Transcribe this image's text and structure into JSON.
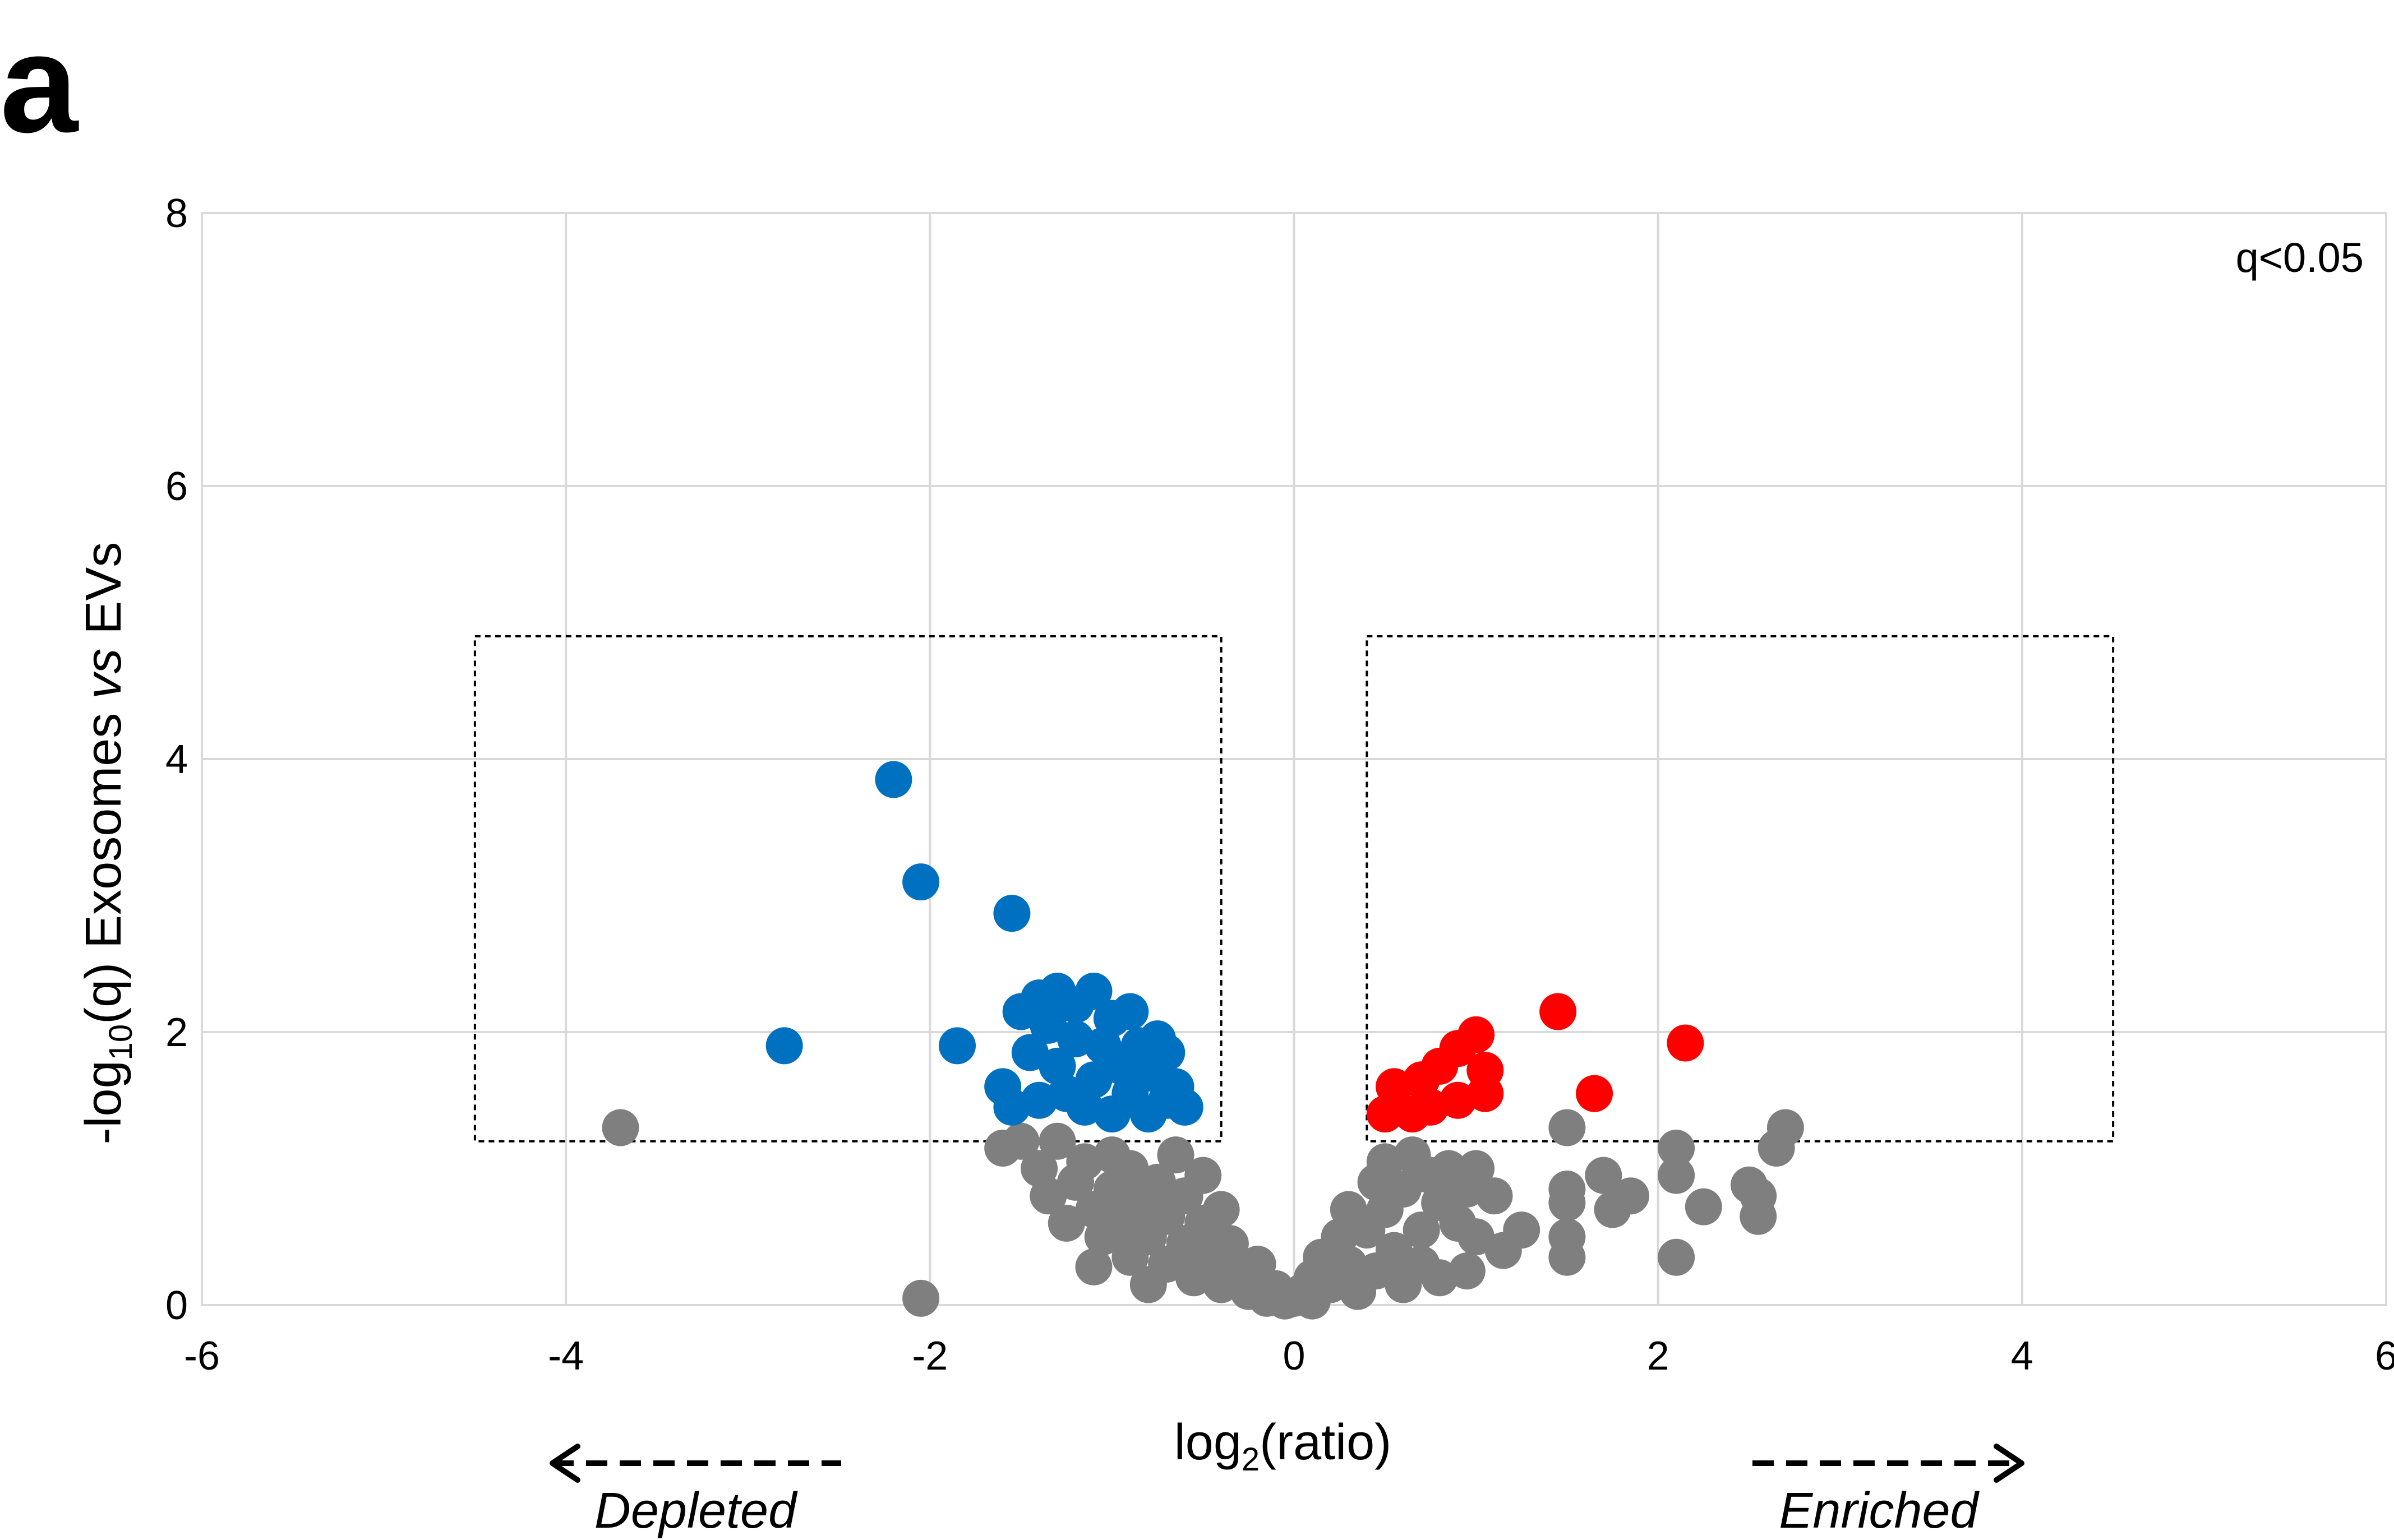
{
  "panel_label": "a",
  "colors": {
    "not_significant": "#7f7f7f",
    "depleted": "#0070c0",
    "enriched": "#ff0000",
    "grid": "#d9d9d9",
    "frame": "#d9d9d9"
  },
  "chart_data": {
    "type": "scatter",
    "title": "",
    "xlabel": "log2(ratio)",
    "xlabel_parts": {
      "pre": "log",
      "sub": "2",
      "post": "(ratio)"
    },
    "ylabel": "-log10(q) Exosomes vs EVs",
    "ylabel_parts": {
      "pre": "-log",
      "sub": "10",
      "mid": "(q) Exosomes ",
      "italic": "vs",
      "post": " EVs"
    },
    "xlim": [
      -6,
      6
    ],
    "ylim": [
      0,
      8
    ],
    "x_ticks": [
      -6,
      -4,
      -2,
      0,
      2,
      4,
      6
    ],
    "x_tick_labels": [
      "-6",
      "-4",
      "-2",
      "0",
      "2",
      "4",
      "6"
    ],
    "y_ticks": [
      0,
      2,
      4,
      6,
      8
    ],
    "y_tick_labels": [
      "0",
      "2",
      "4",
      "6",
      "8"
    ],
    "grid": true,
    "threshold_label": "q<0.05",
    "direction_labels": {
      "left": "Depleted",
      "right": "Enriched"
    },
    "threshold_boxes": [
      {
        "x": [
          -4.5,
          -0.4
        ],
        "y": [
          1.2,
          4.9
        ]
      },
      {
        "x": [
          0.4,
          4.5
        ],
        "y": [
          1.2,
          4.9
        ]
      }
    ],
    "series": [
      {
        "color_key": "not_significant",
        "points": [
          [
            -3.7,
            1.3
          ],
          [
            -2.05,
            0.05
          ],
          [
            -1.6,
            1.15
          ],
          [
            -1.5,
            1.2
          ],
          [
            -1.4,
            1.0
          ],
          [
            -1.35,
            0.8
          ],
          [
            -1.3,
            1.2
          ],
          [
            -1.25,
            0.6
          ],
          [
            -1.2,
            0.9
          ],
          [
            -1.15,
            1.05
          ],
          [
            -1.1,
            0.7
          ],
          [
            -1.1,
            0.28
          ],
          [
            -1.05,
            0.5
          ],
          [
            -1.0,
            1.1
          ],
          [
            -1.0,
            0.85
          ],
          [
            -0.95,
            0.6
          ],
          [
            -0.9,
            0.35
          ],
          [
            -0.9,
            1.0
          ],
          [
            -0.85,
            0.75
          ],
          [
            -0.8,
            0.5
          ],
          [
            -0.8,
            0.15
          ],
          [
            -0.75,
            0.9
          ],
          [
            -0.7,
            0.65
          ],
          [
            -0.7,
            0.3
          ],
          [
            -0.65,
            1.1
          ],
          [
            -0.6,
            0.8
          ],
          [
            -0.6,
            0.45
          ],
          [
            -0.55,
            0.2
          ],
          [
            -0.5,
            0.6
          ],
          [
            -0.5,
            0.95
          ],
          [
            -0.45,
            0.35
          ],
          [
            -0.4,
            0.15
          ],
          [
            -0.4,
            0.7
          ],
          [
            -0.35,
            0.45
          ],
          [
            -0.3,
            0.25
          ],
          [
            -0.25,
            0.1
          ],
          [
            -0.2,
            0.3
          ],
          [
            -0.15,
            0.05
          ],
          [
            -0.1,
            0.12
          ],
          [
            -0.05,
            0.03
          ],
          [
            0.0,
            0.05
          ],
          [
            0.05,
            0.1
          ],
          [
            0.1,
            0.03
          ],
          [
            0.1,
            0.2
          ],
          [
            0.15,
            0.35
          ],
          [
            0.2,
            0.15
          ],
          [
            0.25,
            0.5
          ],
          [
            0.3,
            0.3
          ],
          [
            0.3,
            0.7
          ],
          [
            0.35,
            0.1
          ],
          [
            0.4,
            0.55
          ],
          [
            0.45,
            0.9
          ],
          [
            0.45,
            0.25
          ],
          [
            0.5,
            1.05
          ],
          [
            0.5,
            0.7
          ],
          [
            0.55,
            0.4
          ],
          [
            0.6,
            0.15
          ],
          [
            0.6,
            0.85
          ],
          [
            0.65,
            1.1
          ],
          [
            0.7,
            0.55
          ],
          [
            0.7,
            0.3
          ],
          [
            0.75,
            0.95
          ],
          [
            0.8,
            0.75
          ],
          [
            0.8,
            0.2
          ],
          [
            0.85,
            1.0
          ],
          [
            0.9,
            0.6
          ],
          [
            0.95,
            0.85
          ],
          [
            0.95,
            0.25
          ],
          [
            1.0,
            0.5
          ],
          [
            1.0,
            1.0
          ],
          [
            1.1,
            0.8
          ],
          [
            1.15,
            0.4
          ],
          [
            1.25,
            0.55
          ],
          [
            1.5,
            1.3
          ],
          [
            1.5,
            0.85
          ],
          [
            1.5,
            0.75
          ],
          [
            1.5,
            0.5
          ],
          [
            1.5,
            0.35
          ],
          [
            1.7,
            0.95
          ],
          [
            1.75,
            0.7
          ],
          [
            1.85,
            0.8
          ],
          [
            2.1,
            1.15
          ],
          [
            2.1,
            0.95
          ],
          [
            2.1,
            0.35
          ],
          [
            2.25,
            0.72
          ],
          [
            2.5,
            0.88
          ],
          [
            2.55,
            0.65
          ],
          [
            2.55,
            0.8
          ],
          [
            2.65,
            1.15
          ],
          [
            2.7,
            1.3
          ]
        ]
      },
      {
        "color_key": "depleted",
        "points": [
          [
            -2.2,
            3.85
          ],
          [
            -2.05,
            3.1
          ],
          [
            -1.55,
            2.87
          ],
          [
            -2.8,
            1.9
          ],
          [
            -1.85,
            1.9
          ],
          [
            -1.6,
            1.6
          ],
          [
            -1.55,
            1.45
          ],
          [
            -1.5,
            2.15
          ],
          [
            -1.45,
            1.85
          ],
          [
            -1.4,
            2.25
          ],
          [
            -1.4,
            1.5
          ],
          [
            -1.35,
            2.05
          ],
          [
            -1.3,
            2.3
          ],
          [
            -1.3,
            1.75
          ],
          [
            -1.25,
            1.55
          ],
          [
            -1.2,
            2.2
          ],
          [
            -1.2,
            1.95
          ],
          [
            -1.15,
            1.45
          ],
          [
            -1.1,
            2.3
          ],
          [
            -1.1,
            1.65
          ],
          [
            -1.05,
            1.9
          ],
          [
            -1.0,
            2.1
          ],
          [
            -1.0,
            1.4
          ],
          [
            -0.95,
            1.75
          ],
          [
            -0.9,
            2.15
          ],
          [
            -0.9,
            1.55
          ],
          [
            -0.85,
            1.9
          ],
          [
            -0.8,
            1.4
          ],
          [
            -0.8,
            1.7
          ],
          [
            -0.75,
            1.95
          ],
          [
            -0.7,
            1.5
          ],
          [
            -0.7,
            1.85
          ],
          [
            -0.65,
            1.6
          ],
          [
            -0.6,
            1.45
          ]
        ]
      },
      {
        "color_key": "enriched",
        "points": [
          [
            1.45,
            2.15
          ],
          [
            2.15,
            1.92
          ],
          [
            1.65,
            1.55
          ],
          [
            1.0,
            1.98
          ],
          [
            0.9,
            1.88
          ],
          [
            1.05,
            1.72
          ],
          [
            0.8,
            1.75
          ],
          [
            1.05,
            1.55
          ],
          [
            0.55,
            1.6
          ],
          [
            0.7,
            1.65
          ],
          [
            0.75,
            1.45
          ],
          [
            0.65,
            1.4
          ],
          [
            0.5,
            1.4
          ],
          [
            0.9,
            1.5
          ]
        ]
      }
    ]
  }
}
